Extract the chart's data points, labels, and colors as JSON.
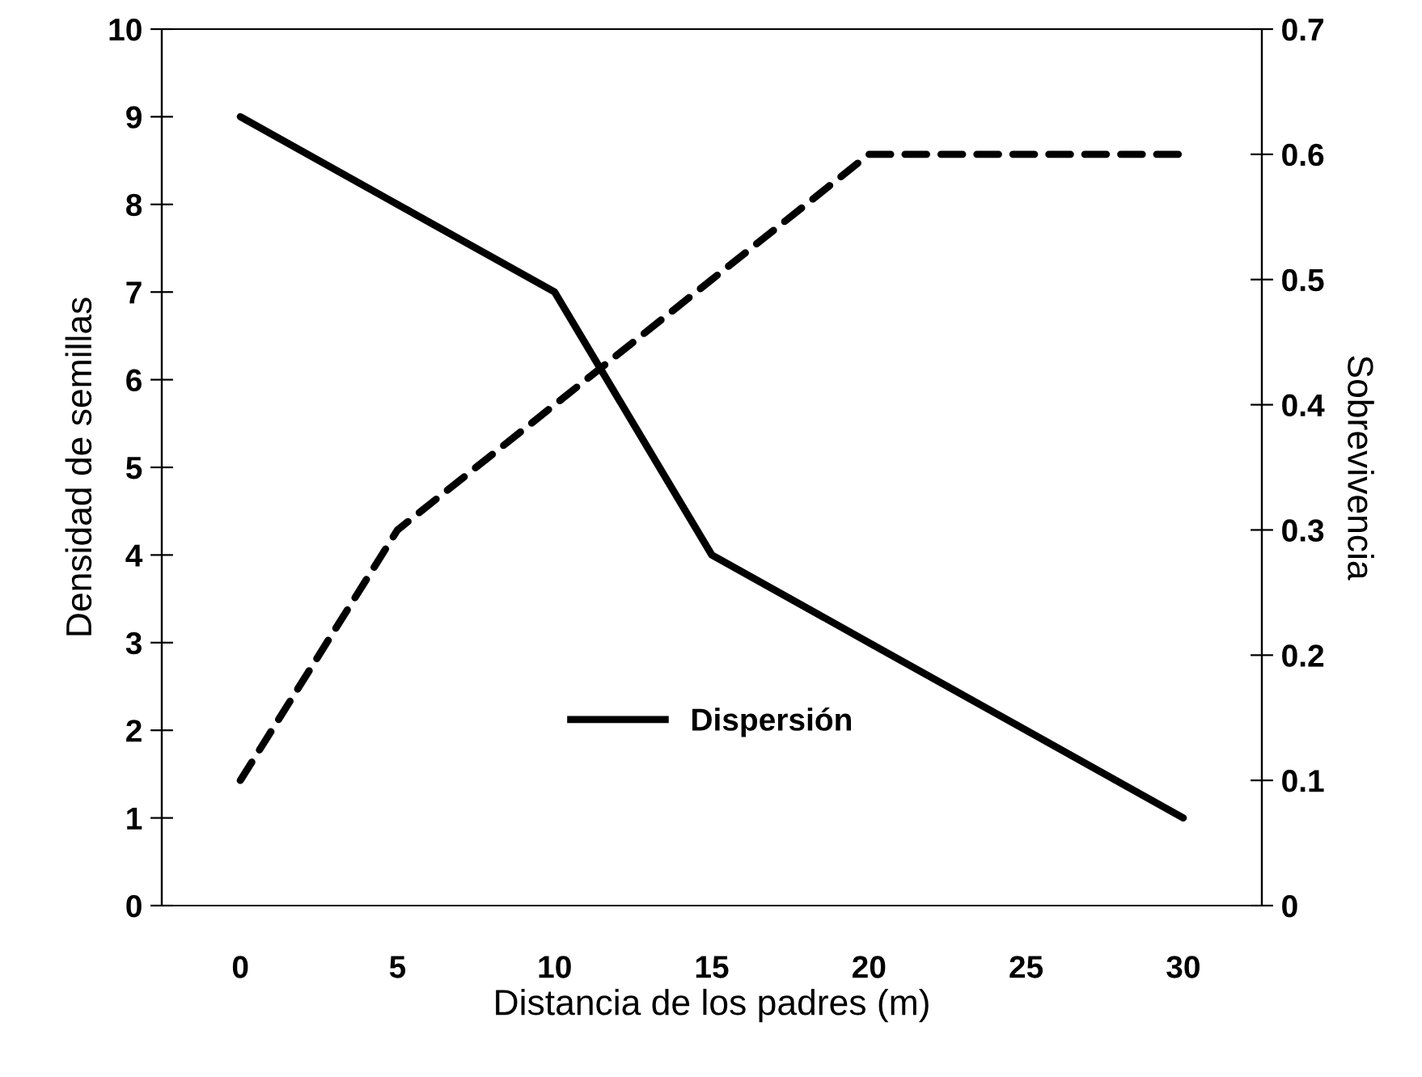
{
  "chart_data": {
    "type": "line",
    "xlabel": "Distancia de los padres (m)",
    "ylabel": "Densidad de semillas",
    "y2label": "Sobrevivencia",
    "categories": [
      "0",
      "5",
      "10",
      "15",
      "20",
      "25",
      "30"
    ],
    "series": [
      {
        "name": "Dispersión",
        "color": "#000000",
        "values": [
          9,
          8,
          7,
          4,
          3,
          2,
          1
        ],
        "line_style": "solid"
      },
      {
        "color": "#000000",
        "values": [
          0.1,
          0.3,
          0.4,
          0.5,
          0.6,
          0.6,
          0.6
        ],
        "axis": "y2",
        "line_style": "dashed"
      }
    ],
    "ylim": [
      0,
      10
    ],
    "yticks": [
      0,
      1,
      2,
      3,
      4,
      5,
      6,
      7,
      8,
      9,
      10
    ],
    "y2lim": [
      0,
      0.7
    ],
    "y2ticks": [
      0,
      0.1,
      0.2,
      0.3,
      0.4,
      0.5,
      0.6,
      0.7
    ],
    "grid": false,
    "legend": "bottom",
    "marker": "none"
  }
}
